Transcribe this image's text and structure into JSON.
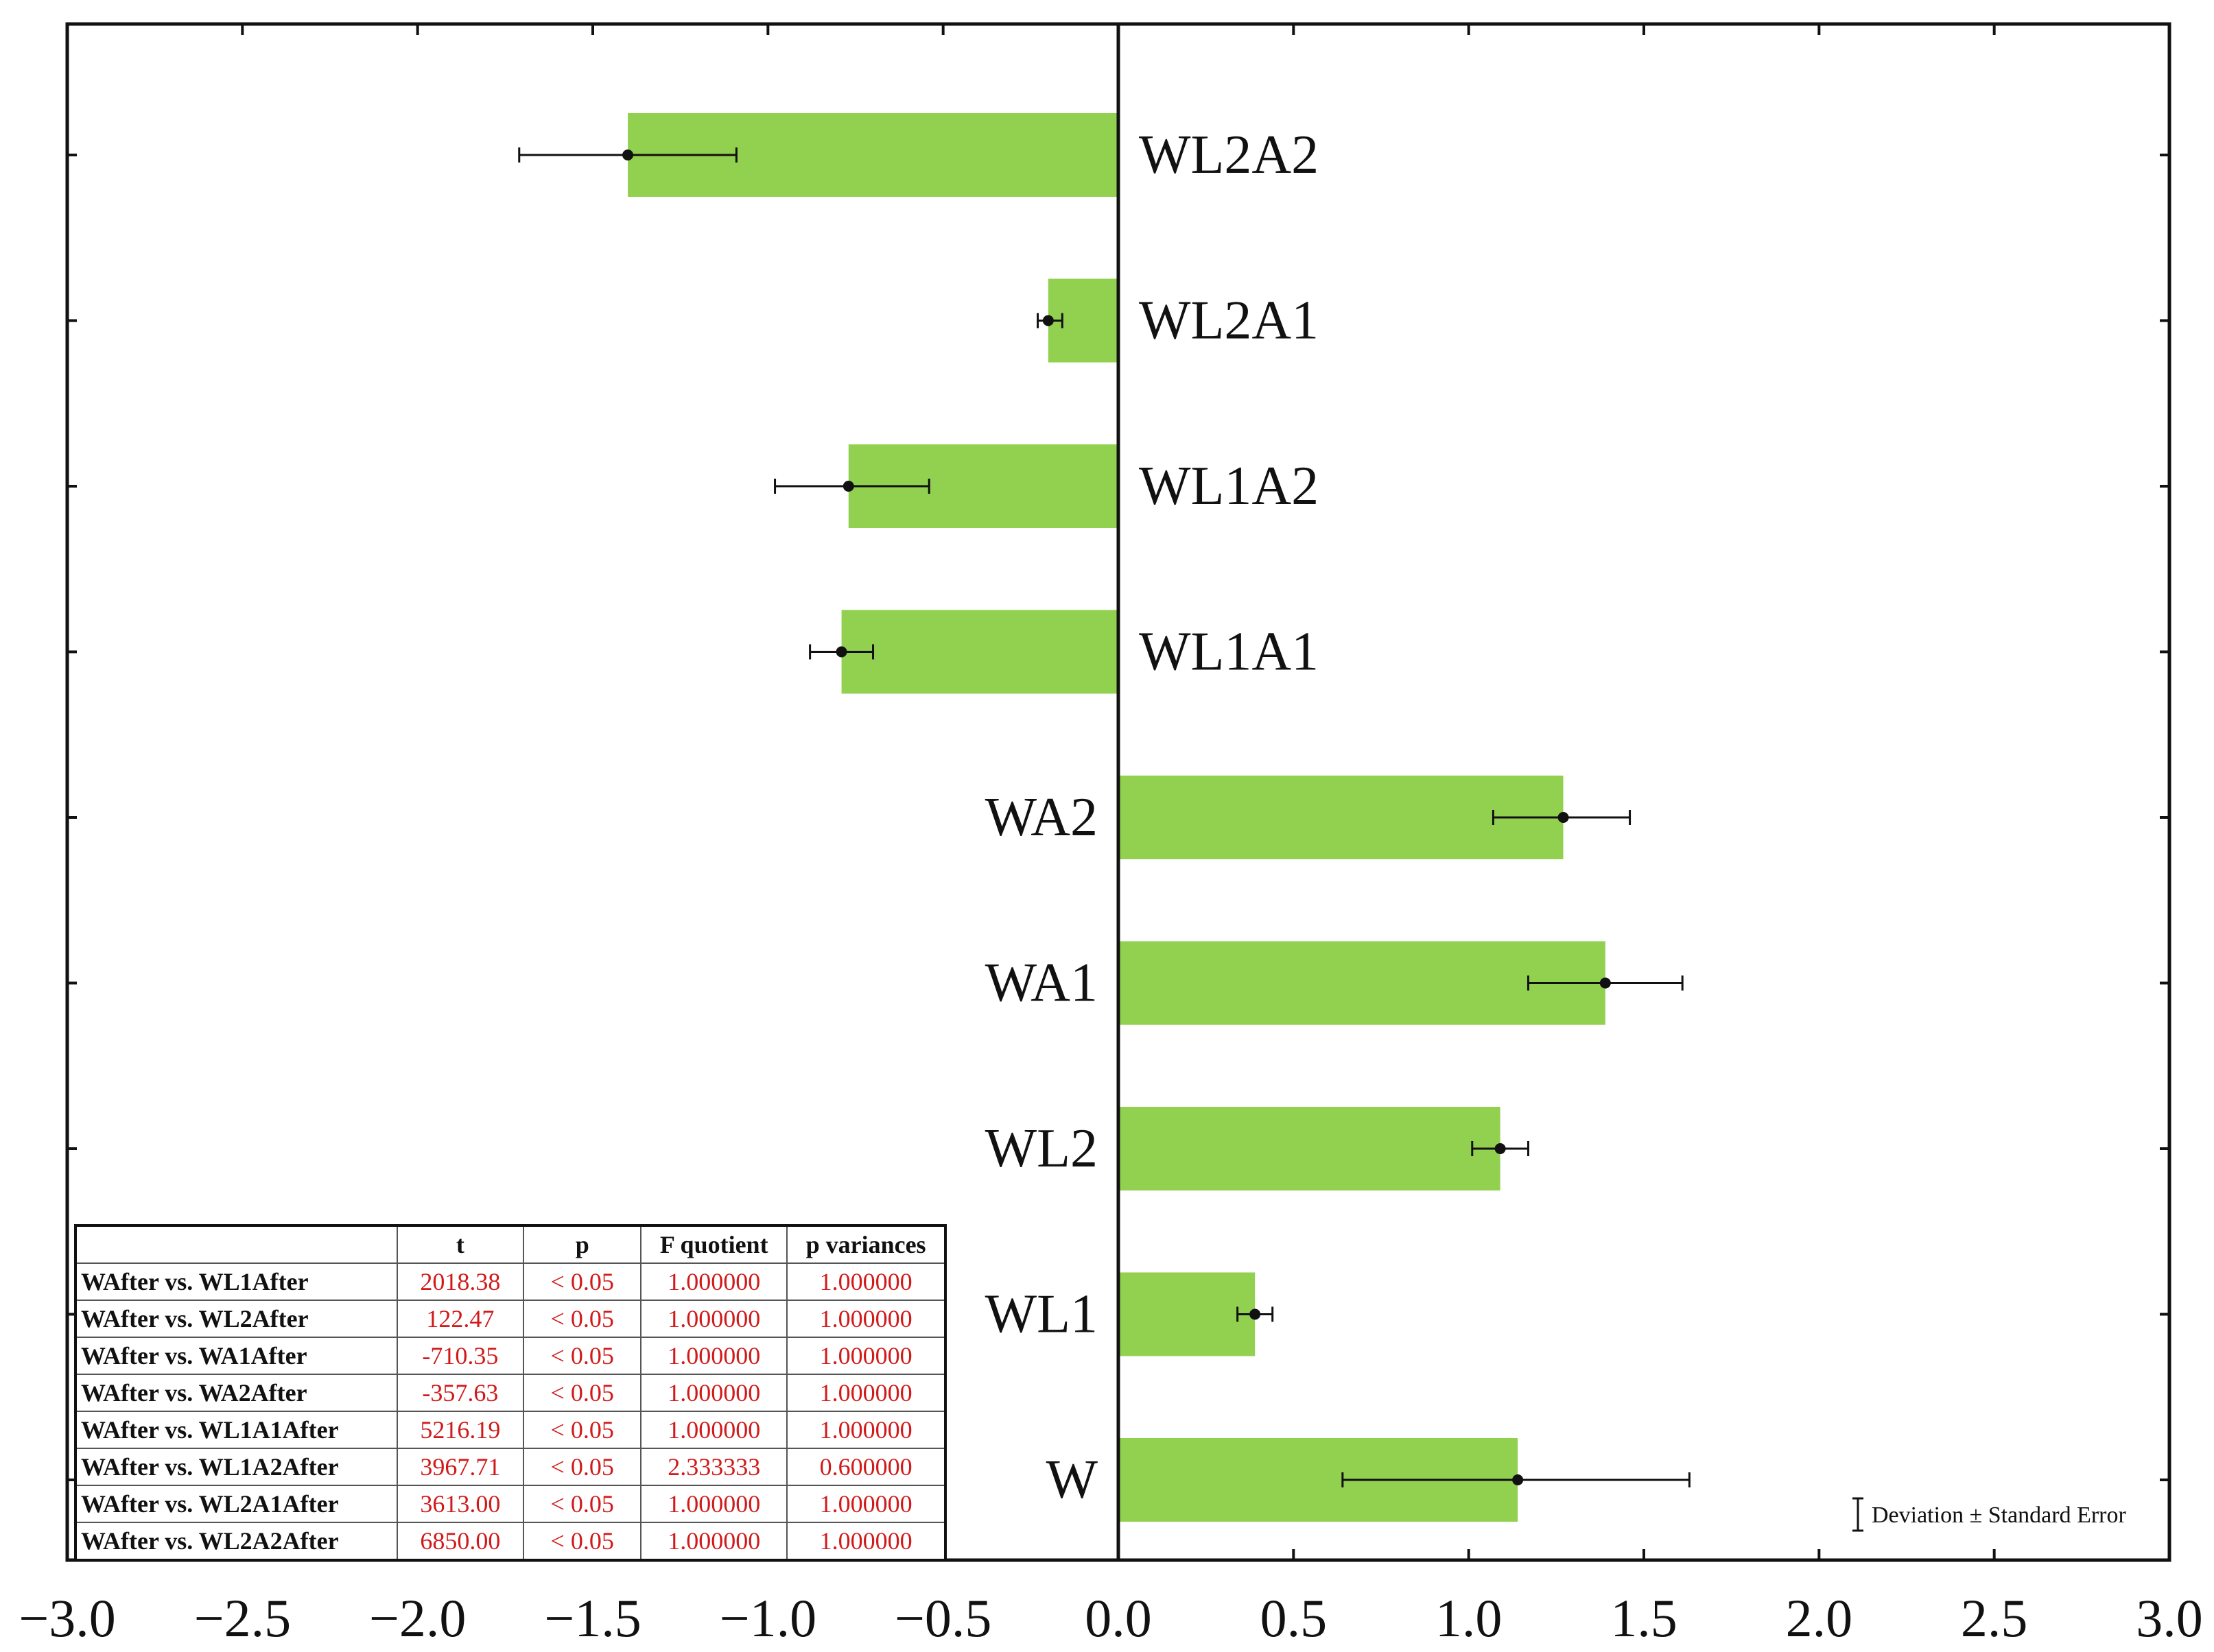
{
  "chart_data": {
    "type": "bar",
    "orientation": "horizontal",
    "categories": [
      "WL2A2",
      "WL2A1",
      "WL1A2",
      "WL1A1",
      "WA2",
      "WA1",
      "WL2",
      "WL1",
      "W"
    ],
    "values": [
      -1.4,
      -0.2,
      -0.77,
      -0.79,
      1.27,
      1.39,
      1.09,
      0.39,
      1.14
    ],
    "error_low": [
      -1.71,
      -0.23,
      -0.98,
      -0.88,
      1.07,
      1.17,
      1.01,
      0.34,
      0.64
    ],
    "error_high": [
      -1.09,
      -0.16,
      -0.54,
      -0.7,
      1.46,
      1.61,
      1.17,
      0.44,
      1.63
    ],
    "xlim": [
      -3.0,
      3.0
    ],
    "x_ticks": [
      "−3.0",
      "−2.5",
      "−2.0",
      "−1.5",
      "−1.0",
      "−0.5",
      "0.0",
      "0.5",
      "1.0",
      "1.5",
      "2.0",
      "2.5",
      "3.0"
    ],
    "bar_color": "#92d050",
    "grid": false,
    "legend": {
      "text": "Deviation ± Standard Error",
      "placement": "bottom-right"
    }
  },
  "table": {
    "headers": [
      "",
      "t",
      "p",
      "F quotient",
      "p variances"
    ],
    "rows": [
      [
        "WAfter vs. WL1After",
        "2018.38",
        "< 0.05",
        "1.000000",
        "1.000000"
      ],
      [
        "WAfter vs. WL2After",
        "122.47",
        "< 0.05",
        "1.000000",
        "1.000000"
      ],
      [
        "WAfter vs. WA1After",
        "-710.35",
        "< 0.05",
        "1.000000",
        "1.000000"
      ],
      [
        "WAfter vs. WA2After",
        "-357.63",
        "< 0.05",
        "1.000000",
        "1.000000"
      ],
      [
        "WAfter vs. WL1A1After",
        "5216.19",
        "< 0.05",
        "1.000000",
        "1.000000"
      ],
      [
        "WAfter vs. WL1A2After",
        "3967.71",
        "< 0.05",
        "2.333333",
        "0.600000"
      ],
      [
        "WAfter vs. WL2A1After",
        "3613.00",
        "< 0.05",
        "1.000000",
        "1.000000"
      ],
      [
        "WAfter vs. WL2A2After",
        "6850.00",
        "< 0.05",
        "1.000000",
        "1.000000"
      ]
    ]
  }
}
